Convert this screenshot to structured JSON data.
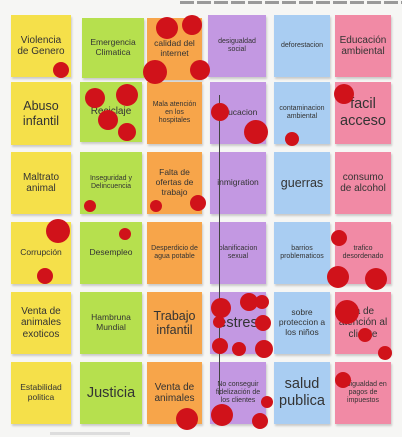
{
  "notes": [
    {
      "text": "Violencia de Genero",
      "color": "yellow"
    },
    {
      "text": "Emergencia Climatica",
      "color": "green"
    },
    {
      "text": "calidad del internet",
      "color": "orange"
    },
    {
      "text": "desigualdad social",
      "color": "purple"
    },
    {
      "text": "deforestacion",
      "color": "blue"
    },
    {
      "text": "Educación ambiental",
      "color": "pink"
    },
    {
      "text": "Abuso infantil",
      "color": "yellow"
    },
    {
      "text": "Reciclaje",
      "color": "green"
    },
    {
      "text": "Mala atención en los hospitales",
      "color": "orange"
    },
    {
      "text": "educacion",
      "color": "purple"
    },
    {
      "text": "contaminacion ambiental",
      "color": "blue"
    },
    {
      "text": "facil acceso",
      "color": "pink"
    },
    {
      "text": "Maltrato animal",
      "color": "yellow"
    },
    {
      "text": "Inseguridad y Delincuencia",
      "color": "green"
    },
    {
      "text": "Falta de ofertas de trabajo",
      "color": "orange"
    },
    {
      "text": "inmigration",
      "color": "purple"
    },
    {
      "text": "guerras",
      "color": "blue"
    },
    {
      "text": "consumo de alcohol",
      "color": "pink"
    },
    {
      "text": "Corrupción",
      "color": "yellow"
    },
    {
      "text": "Desempleo",
      "color": "green"
    },
    {
      "text": "Desperdicio de agua potable",
      "color": "orange"
    },
    {
      "text": "planificacion sexual",
      "color": "purple"
    },
    {
      "text": "barrios problematicos",
      "color": "blue"
    },
    {
      "text": "trafico desordenado",
      "color": "pink"
    },
    {
      "text": "Venta de animales exoticos",
      "color": "yellow"
    },
    {
      "text": "Hambruna Mundial",
      "color": "green"
    },
    {
      "text": "Trabajo infantil",
      "color": "orange"
    },
    {
      "text": "estres",
      "color": "purple"
    },
    {
      "text": "sobre proteccion a los niños",
      "color": "blue"
    },
    {
      "text": "ta de atención al cliente",
      "color": "pink"
    },
    {
      "text": "Estabilidad politica",
      "color": "yellow"
    },
    {
      "text": "Justicia",
      "color": "green"
    },
    {
      "text": "Venta de animales",
      "color": "orange"
    },
    {
      "text": "No conseguir fidelización de los clientes",
      "color": "purple"
    },
    {
      "text": "salud publica",
      "color": "blue"
    },
    {
      "text": "desigualdad en pagos de impuestos",
      "color": "pink"
    }
  ],
  "colors": {
    "yellow": "#f5e04a",
    "green": "#b6e04e",
    "orange": "#f7a54a",
    "purple": "#c398e2",
    "blue": "#a9cdf2",
    "pink": "#f18aa5",
    "vote_dot": "#d0121a"
  }
}
